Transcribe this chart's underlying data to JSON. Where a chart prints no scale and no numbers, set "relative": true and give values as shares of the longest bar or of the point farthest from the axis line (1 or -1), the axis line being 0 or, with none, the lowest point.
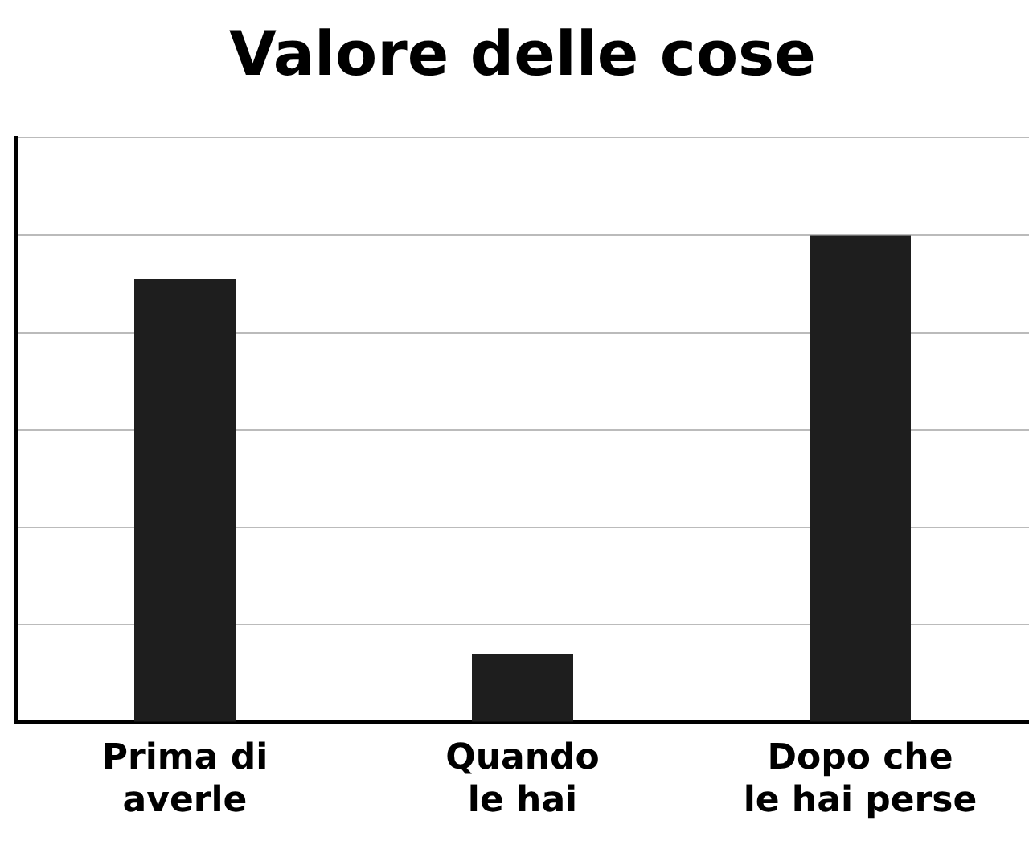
{
  "chart_data": {
    "type": "bar",
    "title": "Valore delle cose",
    "categories": [
      "Prima di\naverle",
      "Quando\nle hai",
      "Dopo che\nle hai perse"
    ],
    "values": [
      0.91,
      0.14,
      1
    ],
    "color": "#1e1e1e",
    "relative": true,
    "grid": "y"
  }
}
